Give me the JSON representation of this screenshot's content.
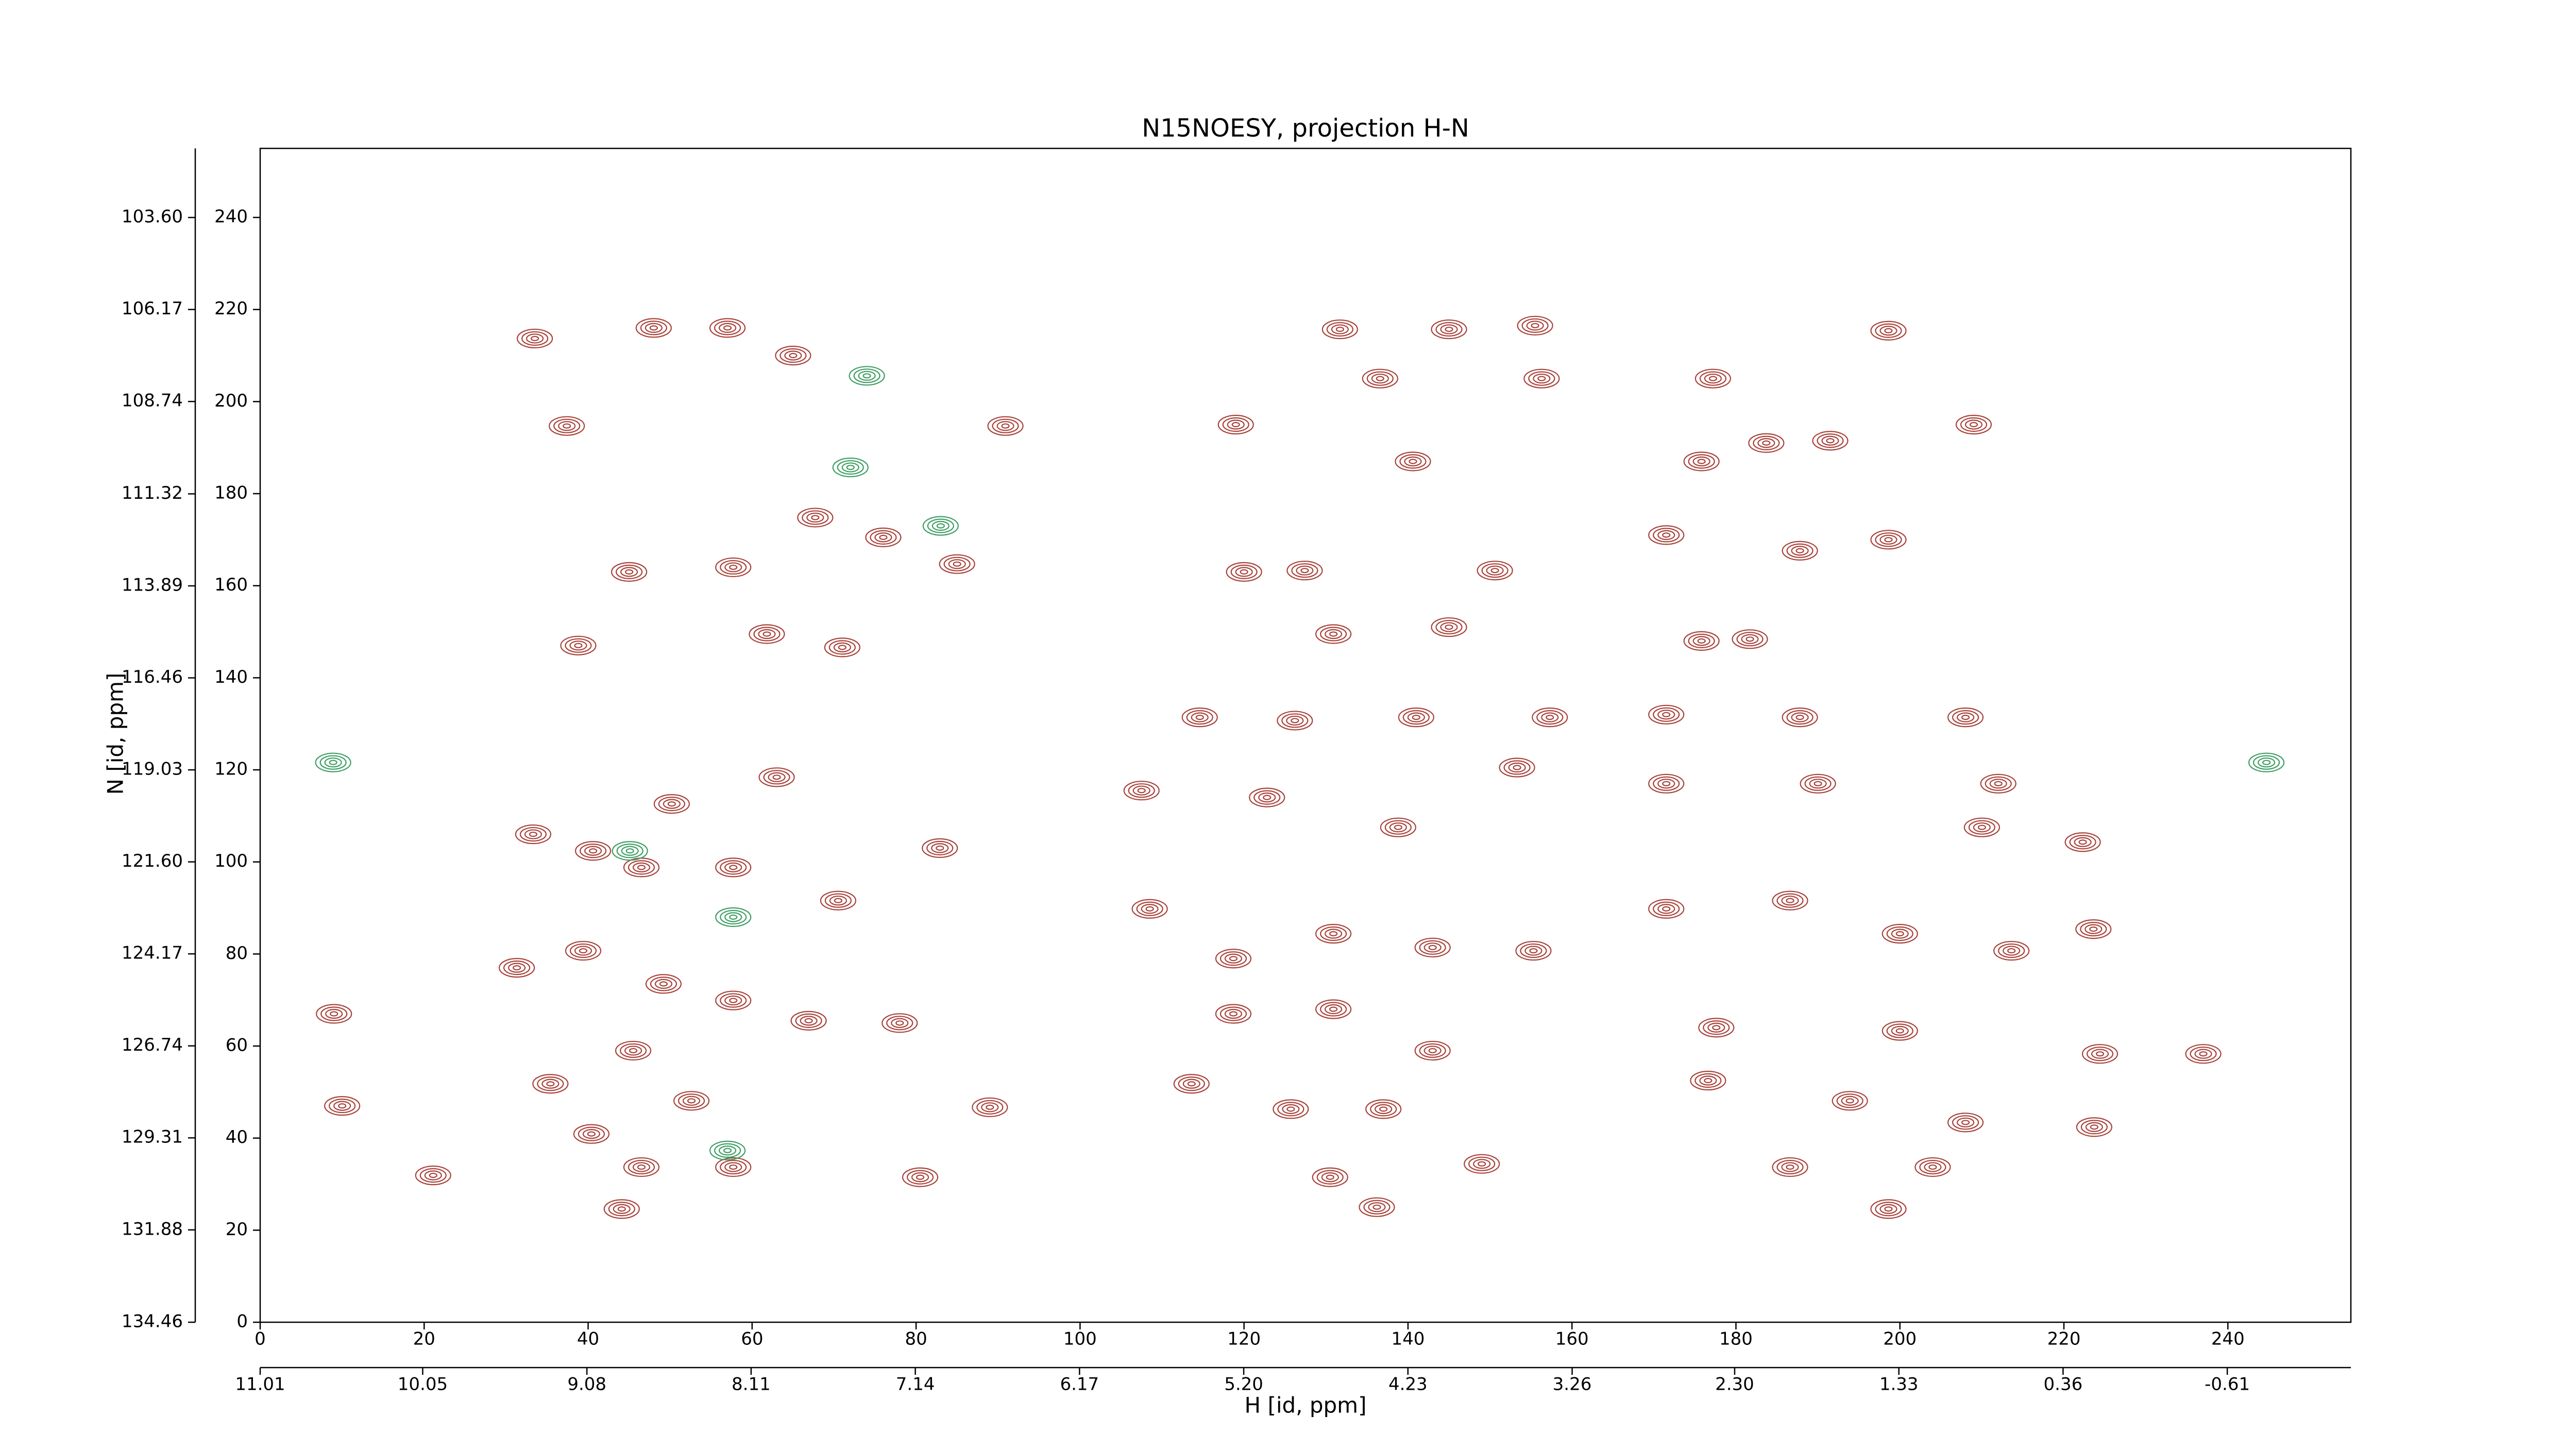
{
  "chart_data": {
    "type": "contour",
    "title": "N15NOESY, projection H-N",
    "xlabel": "H [id, ppm]",
    "ylabel": "N [id, ppm]",
    "xlim": [
      0,
      255
    ],
    "ylim": [
      0,
      255
    ],
    "xticks": [
      0,
      20,
      40,
      60,
      80,
      100,
      120,
      140,
      160,
      180,
      200,
      220,
      240
    ],
    "yticks": [
      0,
      20,
      40,
      60,
      80,
      100,
      120,
      140,
      160,
      180,
      200,
      220,
      240
    ],
    "x2lim": [
      11.01,
      -1.34
    ],
    "x2ticks": [
      11.01,
      10.05,
      9.08,
      8.11,
      7.14,
      6.17,
      {
        "value": 5.2,
        "label": "5.20"
      },
      4.23,
      3.26,
      {
        "value": 2.3,
        "label": "2.30"
      },
      1.33,
      0.36,
      -0.61
    ],
    "y2lim": [
      134.46,
      101.67
    ],
    "y2ticks": [
      134.46,
      131.88,
      129.31,
      126.74,
      124.17,
      {
        "value": 121.6,
        "label": "121.60"
      },
      119.03,
      116.46,
      113.89,
      111.32,
      108.74,
      106.17,
      {
        "value": 103.6,
        "label": "103.60"
      }
    ],
    "grid": false,
    "series": [
      {
        "color": "#a8423a",
        "x": [
          48,
          33.5,
          65,
          57,
          37.4,
          45,
          57.7,
          61.8,
          38.8,
          71,
          50.2,
          63,
          33.3,
          40.6,
          46.5,
          57.7,
          70.5,
          31.3,
          39.4,
          49.2,
          57.7,
          66.9,
          45.5,
          35.4,
          52.6,
          40.4,
          46.5,
          44.1,
          21.1,
          10,
          9,
          57.7,
          80.5,
          89,
          78,
          82.9,
          85,
          90.9,
          76,
          67.7,
          119,
          131.7,
          145,
          155.5,
          136.6,
          156.3,
          198.6,
          177.2,
          183.7,
          191.5,
          209,
          175.8,
          140.6,
          120,
          127.4,
          150.6,
          171.5,
          187.8,
          198.6,
          130.9,
          145,
          175.8,
          181.7,
          114.6,
          126.2,
          141,
          157.3,
          171.5,
          187.8,
          208,
          107.5,
          122.8,
          138.8,
          153.3,
          171.5,
          190,
          212,
          210,
          222.3,
          108.5,
          118.7,
          130.9,
          143,
          155.3,
          171.5,
          186.6,
          200,
          213.6,
          223.6,
          118.7,
          130.9,
          143,
          177.6,
          200,
          224.4,
          237,
          113.6,
          125.7,
          137,
          149,
          176.6,
          193.9,
          208,
          186.6,
          204,
          198.6,
          136.2,
          130.5,
          223.7
        ],
        "y": [
          216,
          213.7,
          210,
          216,
          194.7,
          163,
          164,
          149.5,
          147,
          146.6,
          112.6,
          118.4,
          106,
          102.4,
          98.8,
          98.8,
          91.6,
          77,
          80.7,
          73.5,
          69.9,
          65.5,
          59,
          51.8,
          48.1,
          40.9,
          33.7,
          24.6,
          31.9,
          47,
          67,
          33.7,
          31.5,
          46.7,
          65,
          103,
          164.7,
          194.7,
          170.5,
          174.8,
          195,
          215.7,
          215.7,
          216.5,
          205,
          205,
          215.4,
          205,
          191,
          191.5,
          195,
          187,
          187,
          163,
          163.3,
          163.3,
          171,
          167.6,
          170,
          149.5,
          151,
          148,
          148.4,
          131.4,
          130.7,
          131.4,
          131.4,
          132,
          131.4,
          131.4,
          115.5,
          114,
          107.5,
          120.5,
          117,
          117,
          117,
          107.5,
          104.3,
          89.8,
          79,
          84.4,
          81.4,
          80.7,
          89.8,
          91.6,
          84.4,
          80.7,
          85.4,
          67,
          68,
          59,
          64,
          63.3,
          58.3,
          58.3,
          51.8,
          46.3,
          46.3,
          34.4,
          52.5,
          48.1,
          43.4,
          33.7,
          33.7,
          24.6,
          25,
          31.5,
          42.4
        ]
      },
      {
        "color": "#3e9e64",
        "x": [
          72,
          83,
          57.7,
          45.1,
          8.9,
          244.7,
          74,
          57
        ],
        "y": [
          185.7,
          173,
          88,
          102.4,
          121.6,
          121.6,
          205.6,
          37.3
        ]
      }
    ]
  }
}
